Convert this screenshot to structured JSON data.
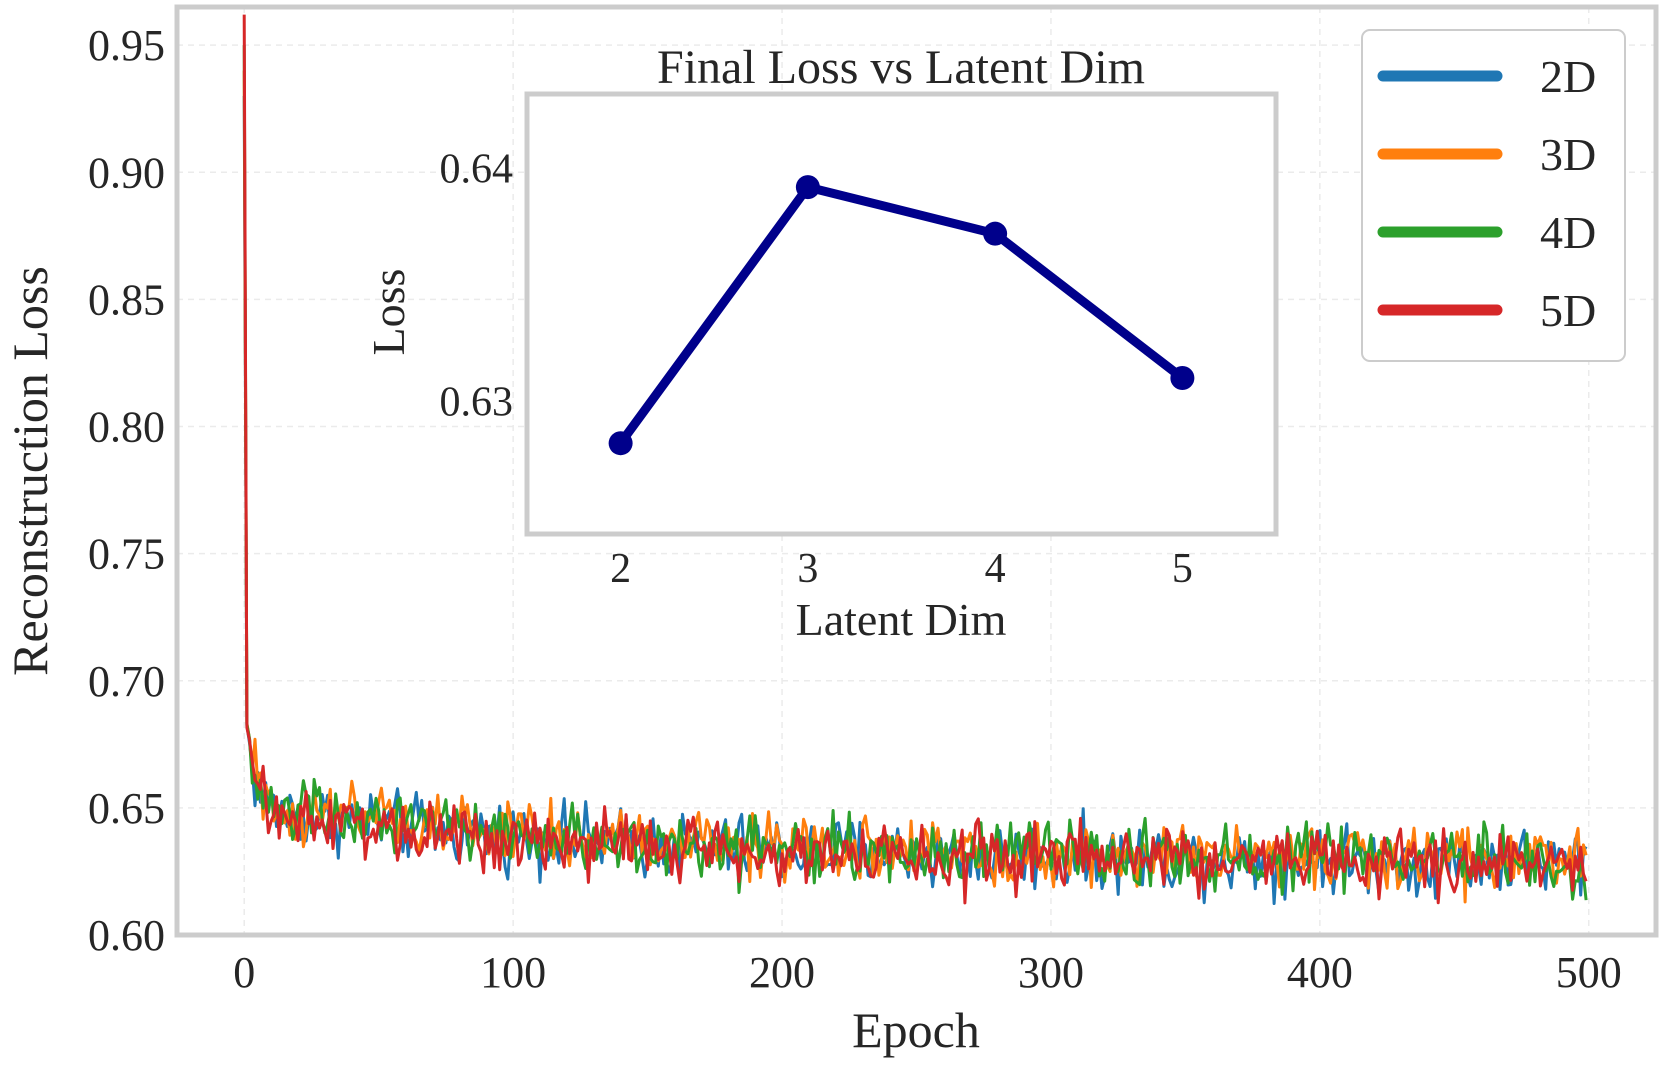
{
  "chart_data": [
    {
      "type": "line",
      "title": "",
      "xlabel": "Epoch",
      "ylabel": "Reconstruction Loss",
      "xlim": [
        -25,
        525
      ],
      "ylim": [
        0.6,
        0.965
      ],
      "xticks": [
        0,
        100,
        200,
        300,
        400,
        500
      ],
      "xtick_labels": [
        "0",
        "100",
        "200",
        "300",
        "400",
        "500"
      ],
      "yticks": [
        0.6,
        0.65,
        0.7,
        0.75,
        0.8,
        0.85,
        0.9,
        0.95
      ],
      "ytick_labels": [
        "0.60",
        "0.65",
        "0.70",
        "0.75",
        "0.80",
        "0.85",
        "0.90",
        "0.95"
      ],
      "grid": true,
      "legend_position": "top-right",
      "x_range": [
        0,
        499
      ],
      "series": [
        {
          "name": "2D",
          "color": "#1f77b4",
          "start": 0.93,
          "final": 0.6283,
          "amplitude": 0.0065
        },
        {
          "name": "3D",
          "color": "#ff7f0e",
          "start": 0.94,
          "final": 0.6292,
          "amplitude": 0.0065
        },
        {
          "name": "4D",
          "color": "#2ca02c",
          "start": 0.95,
          "final": 0.6288,
          "amplitude": 0.0065
        },
        {
          "name": "5D",
          "color": "#d62728",
          "start": 0.962,
          "final": 0.6275,
          "amplitude": 0.0065
        }
      ]
    },
    {
      "type": "line",
      "title": "Final Loss vs Latent Dim",
      "xlabel": "Latent Dim",
      "ylabel": "Loss",
      "x": [
        2,
        3,
        4,
        5
      ],
      "values": [
        0.6282,
        0.6392,
        0.6372,
        0.631
      ],
      "xlim": [
        1.5,
        5.5
      ],
      "ylim": [
        0.6243,
        0.6432
      ],
      "xticks": [
        2,
        3,
        4,
        5
      ],
      "xtick_labels": [
        "2",
        "3",
        "4",
        "5"
      ],
      "yticks": [
        0.63,
        0.64
      ],
      "ytick_labels": [
        "0.63",
        "0.64"
      ],
      "color": "#00008b",
      "grid": false
    }
  ]
}
